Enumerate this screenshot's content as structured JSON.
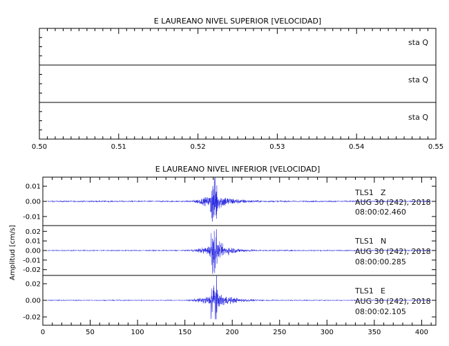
{
  "chart_data": [
    {
      "type": "line",
      "title": "E LAUREANO NIVEL SUPERIOR [VELOCIDAD]",
      "xlim": [
        0.5,
        0.55
      ],
      "x_ticks": [
        "0.50",
        "0.51",
        "0.52",
        "0.53",
        "0.54",
        "0.55"
      ],
      "traces": [
        {
          "label": "sta  Q"
        },
        {
          "label": "sta  Q"
        },
        {
          "label": "sta  Q"
        }
      ]
    },
    {
      "type": "line",
      "title": "E LAUREANO NIVEL INFERIOR [VELOCIDAD]",
      "ylabel": "Amplitud [cm/s]",
      "xlim": [
        0,
        415
      ],
      "x_ticks": [
        "0",
        "50",
        "100",
        "150",
        "200",
        "250",
        "300",
        "350",
        "400"
      ],
      "traces": [
        {
          "station": "TLS1",
          "component": "Z",
          "date": "AUG 30 (242), 2018",
          "time": "08:00:02.460",
          "y_ticks": [
            "0.01",
            "0.00",
            "-0.01"
          ],
          "ylim": [
            -0.016,
            0.016
          ],
          "event_peak_x": 181,
          "event_peak_amplitude": 0.015,
          "noise_amplitude": 0.0006
        },
        {
          "station": "TLS1",
          "component": "N",
          "date": "AUG 30 (242), 2018",
          "time": "08:00:00.285",
          "y_ticks": [
            "0.02",
            "0.01",
            "0.00",
            "-0.01",
            "-0.02"
          ],
          "ylim": [
            -0.026,
            0.026
          ],
          "event_peak_x": 181,
          "event_peak_amplitude": 0.022,
          "noise_amplitude": 0.0008
        },
        {
          "station": "TLS1",
          "component": "E",
          "date": "AUG 30 (242), 2018",
          "time": "08:00:02.105",
          "y_ticks": [
            "0.02",
            "0.00",
            "-0.02"
          ],
          "ylim": [
            -0.03,
            0.03
          ],
          "event_peak_x": 181,
          "event_peak_amplitude": 0.026,
          "noise_amplitude": 0.0008
        }
      ]
    }
  ],
  "colors": {
    "trace": "#1f1fe0",
    "axes": "#000000"
  }
}
